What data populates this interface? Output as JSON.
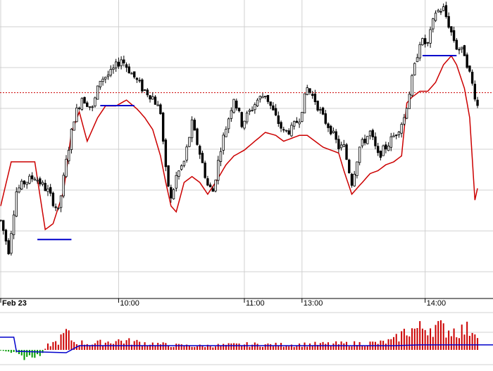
{
  "colors": {
    "background": "#ffffff",
    "grid": "#d0d0d0",
    "candle": "#000000",
    "moving_average": "#cc0000",
    "reference_line": "#cc0000",
    "horizontal_marker": "#0000cc",
    "volume_up": "#cc0000",
    "volume_down": "#009900",
    "volume_average": "#0000cc"
  },
  "chart_data": [
    {
      "type": "candlestick",
      "title": "",
      "xlabel": "",
      "ylabel": "",
      "x_tick_labels": [
        {
          "label": "Feb 23",
          "bold": true,
          "index": 0
        },
        {
          "label": "10:00",
          "bold": false,
          "index": 45
        },
        {
          "label": "11:00",
          "bold": false,
          "index": 93
        },
        {
          "label": "13:00",
          "bold": false,
          "index": 115
        },
        {
          "label": "14:00",
          "bold": false,
          "index": 162
        }
      ],
      "ylim": [
        0,
        100
      ],
      "grid": true,
      "reference_level": 68.5,
      "horizontal_markers": [
        {
          "start": 14,
          "end": 27,
          "value": 18.6
        },
        {
          "start": 38,
          "end": 51,
          "value": 64.1
        },
        {
          "start": 161,
          "end": 174,
          "value": 81.1
        }
      ],
      "price_keypoints": [
        [
          0,
          25
        ],
        [
          3,
          15
        ],
        [
          6,
          35
        ],
        [
          9,
          38
        ],
        [
          13,
          40
        ],
        [
          18,
          35
        ],
        [
          22,
          28
        ],
        [
          25,
          45
        ],
        [
          28,
          60
        ],
        [
          31,
          67
        ],
        [
          35,
          63
        ],
        [
          38,
          73
        ],
        [
          42,
          75
        ],
        [
          46,
          80
        ],
        [
          50,
          75
        ],
        [
          54,
          70
        ],
        [
          58,
          67
        ],
        [
          61,
          62
        ],
        [
          63,
          42
        ],
        [
          65,
          32
        ],
        [
          67,
          40
        ],
        [
          70,
          45
        ],
        [
          73,
          58
        ],
        [
          76,
          48
        ],
        [
          79,
          37
        ],
        [
          81,
          35
        ],
        [
          84,
          50
        ],
        [
          87,
          60
        ],
        [
          89,
          67
        ],
        [
          92,
          58
        ],
        [
          95,
          62
        ],
        [
          98,
          66
        ],
        [
          101,
          68
        ],
        [
          105,
          60
        ],
        [
          108,
          55
        ],
        [
          111,
          56
        ],
        [
          114,
          60
        ],
        [
          117,
          70
        ],
        [
          120,
          66
        ],
        [
          123,
          60
        ],
        [
          126,
          56
        ],
        [
          129,
          50
        ],
        [
          131,
          50
        ],
        [
          134,
          38
        ],
        [
          137,
          50
        ],
        [
          141,
          55
        ],
        [
          144,
          47
        ],
        [
          147,
          50
        ],
        [
          151,
          55
        ],
        [
          154,
          60
        ],
        [
          157,
          73
        ],
        [
          160,
          86
        ],
        [
          163,
          85
        ],
        [
          166,
          96
        ],
        [
          169,
          97
        ],
        [
          172,
          89
        ],
        [
          174,
          84
        ],
        [
          177,
          82
        ],
        [
          179,
          75
        ],
        [
          182,
          64
        ]
      ],
      "moving_average_keypoints": [
        [
          0,
          30
        ],
        [
          4,
          45
        ],
        [
          9,
          45
        ],
        [
          13,
          45
        ],
        [
          17,
          22
        ],
        [
          20,
          24
        ],
        [
          24,
          35
        ],
        [
          27,
          55
        ],
        [
          30,
          62
        ],
        [
          33,
          52
        ],
        [
          37,
          60
        ],
        [
          40,
          64
        ],
        [
          44,
          64
        ],
        [
          48,
          66
        ],
        [
          52,
          63
        ],
        [
          55,
          60
        ],
        [
          58,
          56
        ],
        [
          61,
          47
        ],
        [
          63,
          38
        ],
        [
          65,
          30
        ],
        [
          67,
          28
        ],
        [
          70,
          38
        ],
        [
          73,
          40
        ],
        [
          76,
          38
        ],
        [
          79,
          34
        ],
        [
          82,
          38
        ],
        [
          86,
          44
        ],
        [
          89,
          47
        ],
        [
          93,
          49
        ],
        [
          97,
          52
        ],
        [
          101,
          55
        ],
        [
          105,
          54
        ],
        [
          108,
          52
        ],
        [
          111,
          53
        ],
        [
          114,
          54
        ],
        [
          117,
          54
        ],
        [
          120,
          52
        ],
        [
          123,
          50
        ],
        [
          126,
          49
        ],
        [
          129,
          48
        ],
        [
          131,
          42
        ],
        [
          134,
          34
        ],
        [
          137,
          37
        ],
        [
          141,
          41
        ],
        [
          144,
          42
        ],
        [
          147,
          44
        ],
        [
          150,
          45
        ],
        [
          153,
          47
        ],
        [
          155,
          65
        ],
        [
          157,
          67
        ],
        [
          160,
          69
        ],
        [
          163,
          69
        ],
        [
          166,
          72
        ],
        [
          169,
          78
        ],
        [
          172,
          81
        ],
        [
          174,
          78
        ],
        [
          177,
          70
        ],
        [
          179,
          60
        ],
        [
          181,
          32
        ],
        [
          182,
          36
        ]
      ]
    },
    {
      "type": "bar",
      "title": "",
      "xlabel": "",
      "ylabel": "",
      "ylim": [
        -30,
        100
      ],
      "grid": false,
      "volume_average_level": 11,
      "volume_keypoints": [
        [
          0,
          -2
        ],
        [
          5,
          -8
        ],
        [
          8,
          -18
        ],
        [
          12,
          -20
        ],
        [
          16,
          -8
        ],
        [
          18,
          12
        ],
        [
          22,
          22
        ],
        [
          25,
          45
        ],
        [
          28,
          20
        ],
        [
          35,
          16
        ],
        [
          45,
          24
        ],
        [
          55,
          18
        ],
        [
          65,
          12
        ],
        [
          75,
          10
        ],
        [
          85,
          12
        ],
        [
          95,
          14
        ],
        [
          105,
          13
        ],
        [
          115,
          14
        ],
        [
          125,
          15
        ],
        [
          135,
          16
        ],
        [
          145,
          18
        ],
        [
          150,
          24
        ],
        [
          155,
          50
        ],
        [
          160,
          55
        ],
        [
          163,
          60
        ],
        [
          166,
          60
        ],
        [
          170,
          52
        ],
        [
          175,
          50
        ],
        [
          182,
          55
        ]
      ]
    }
  ]
}
